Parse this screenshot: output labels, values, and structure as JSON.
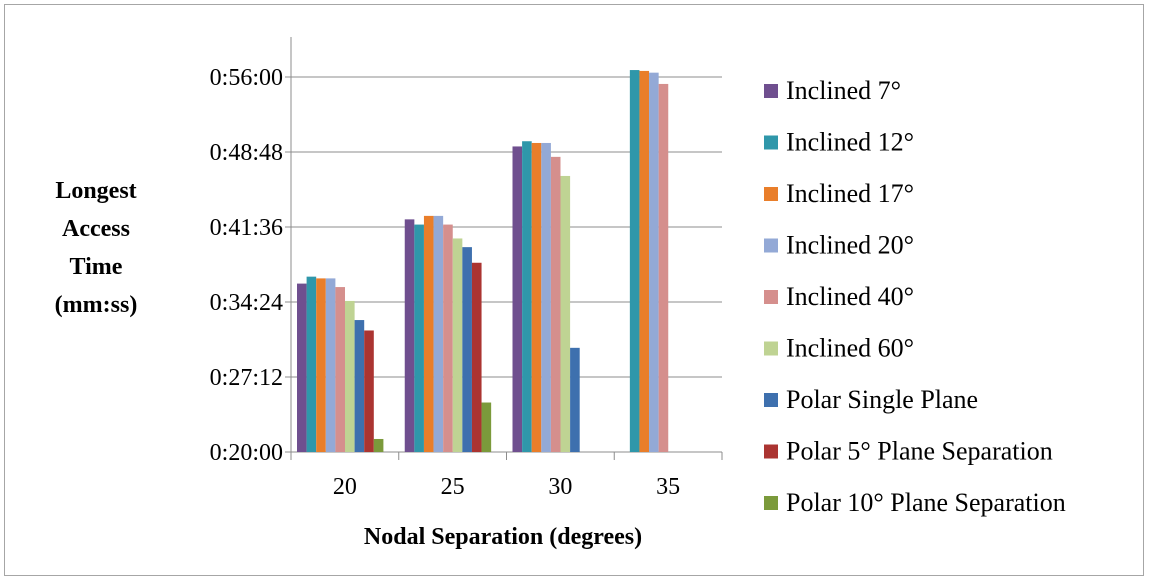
{
  "chart_data": {
    "type": "bar",
    "xlabel": "Nodal Separation (degrees)",
    "ylabel": [
      "Longest",
      "Access",
      "Time",
      "(mm:ss)"
    ],
    "categories": [
      "20",
      "25",
      "30",
      "35"
    ],
    "y_ticks": [
      "0:20:00",
      "0:27:12",
      "0:34:24",
      "0:41:36",
      "0:48:48",
      "0:56:00"
    ],
    "ylim": [
      "0:20:00",
      "0:56:00"
    ],
    "grid": true,
    "legend_position": "right",
    "series": [
      {
        "name": "Inclined 7°",
        "color": "#6f4f8f",
        "values": [
          "0:36:10",
          "0:42:20",
          "0:49:20",
          null
        ]
      },
      {
        "name": "Inclined 12°",
        "color": "#2f97aa",
        "values": [
          "0:36:50",
          "0:41:50",
          "0:49:50",
          "0:56:40"
        ]
      },
      {
        "name": "Inclined 17°",
        "color": "#e97e2a",
        "values": [
          "0:36:40",
          "0:42:40",
          "0:49:40",
          "0:56:35"
        ]
      },
      {
        "name": "Inclined 20°",
        "color": "#93a9d6",
        "values": [
          "0:36:40",
          "0:42:40",
          "0:49:40",
          "0:56:25"
        ]
      },
      {
        "name": "Inclined 40°",
        "color": "#d58f8d",
        "values": [
          "0:35:50",
          "0:41:50",
          "0:48:20",
          "0:55:20"
        ]
      },
      {
        "name": "Inclined 60°",
        "color": "#bfd393",
        "values": [
          "0:34:30",
          "0:40:30",
          "0:46:30",
          null
        ]
      },
      {
        "name": "Polar Single Plane",
        "color": "#3e70ae",
        "values": [
          "0:32:40",
          "0:39:40",
          "0:30:00",
          null
        ]
      },
      {
        "name": "Polar 5° Plane Separation",
        "color": "#ab3431",
        "values": [
          "0:31:40",
          "0:38:10",
          null,
          null
        ]
      },
      {
        "name": "Polar 10° Plane Separation",
        "color": "#7b9a3b",
        "values": [
          "0:21:15",
          "0:24:45",
          null,
          null
        ]
      }
    ]
  }
}
